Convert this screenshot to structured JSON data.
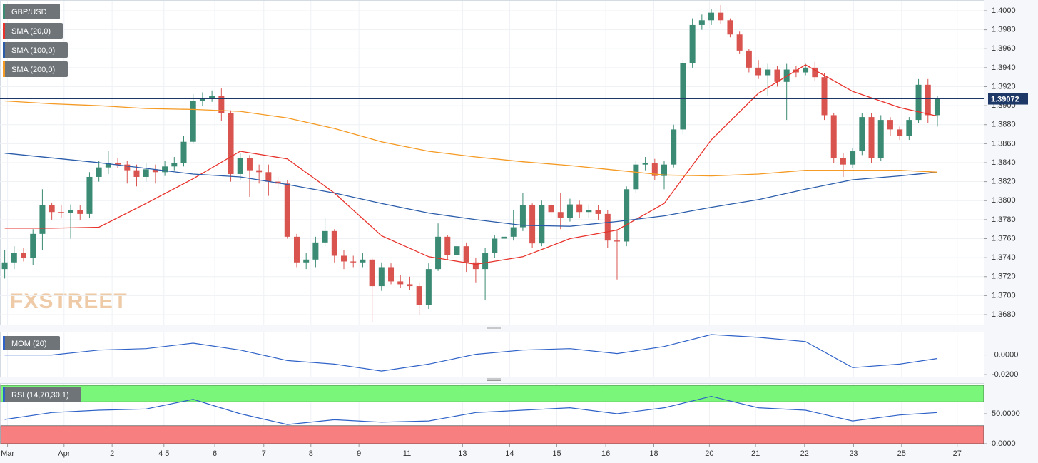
{
  "chart_data": [
    {
      "type": "candlestick",
      "title": "GBP/USD",
      "watermark": "FXSTREET",
      "up_color": "#3b8b74",
      "down_color": "#d9534f",
      "open": [
        1.3728,
        1.3735,
        1.3745,
        1.374,
        1.3765,
        1.3795,
        1.3788,
        1.3787,
        1.379,
        1.3786,
        1.3825,
        1.3835,
        1.384,
        1.3838,
        1.3832,
        1.3825,
        1.3833,
        1.383,
        1.3836,
        1.384,
        1.3862,
        1.3905,
        1.3908,
        1.391,
        1.3892,
        1.3828,
        1.3845,
        1.3832,
        1.383,
        1.382,
        1.3818,
        1.3762,
        1.3735,
        1.3738,
        1.3756,
        1.3768,
        1.3742,
        1.3736,
        1.3735,
        1.3738,
        1.371,
        1.373,
        1.3715,
        1.3712,
        1.371,
        1.369,
        1.3728,
        1.3762,
        1.3743,
        1.3752,
        1.3735,
        1.3728,
        1.3745,
        1.376,
        1.3762,
        1.3772,
        1.3795,
        1.3755,
        1.3795,
        1.3788,
        1.3782,
        1.3796,
        1.3788,
        1.379,
        1.3786,
        1.3758,
        1.3757,
        1.3812,
        1.3838,
        1.384,
        1.3826,
        1.3838,
        1.3875,
        1.3945,
        1.3985,
        1.399,
        1.3998,
        1.399,
        1.3975,
        1.3958,
        1.394,
        1.3932,
        1.3938,
        1.3925,
        1.3938,
        1.3935,
        1.394,
        1.393,
        1.389,
        1.3845,
        1.3838,
        1.3852,
        1.3888,
        1.3845,
        1.3885,
        1.3875,
        1.3868,
        1.3885,
        1.3922,
        1.389
      ],
      "high": [
        1.3748,
        1.3752,
        1.375,
        1.377,
        1.3812,
        1.3798,
        1.3795,
        1.3796,
        1.3795,
        1.383,
        1.3842,
        1.3852,
        1.3845,
        1.3842,
        1.3838,
        1.384,
        1.3838,
        1.3842,
        1.3846,
        1.3868,
        1.3912,
        1.3914,
        1.3916,
        1.3918,
        1.3895,
        1.385,
        1.3848,
        1.3838,
        1.3838,
        1.3825,
        1.3822,
        1.3765,
        1.3745,
        1.3762,
        1.3782,
        1.377,
        1.3748,
        1.3742,
        1.3745,
        1.374,
        1.3735,
        1.3734,
        1.3722,
        1.372,
        1.3714,
        1.3734,
        1.3776,
        1.3764,
        1.3758,
        1.3756,
        1.374,
        1.375,
        1.3764,
        1.3768,
        1.379,
        1.3808,
        1.3797,
        1.38,
        1.3798,
        1.3808,
        1.3802,
        1.38,
        1.3796,
        1.3795,
        1.379,
        1.377,
        1.3815,
        1.3842,
        1.3846,
        1.3844,
        1.3842,
        1.388,
        1.3948,
        1.3992,
        1.3996,
        1.4002,
        1.4006,
        1.3992,
        1.3978,
        1.396,
        1.3948,
        1.3944,
        1.3942,
        1.3944,
        1.3942,
        1.3944,
        1.3946,
        1.3934,
        1.3892,
        1.385,
        1.3855,
        1.3892,
        1.3892,
        1.389,
        1.3888,
        1.3878,
        1.3888,
        1.3928,
        1.3928,
        1.391
      ],
      "low": [
        1.3718,
        1.3728,
        1.3736,
        1.3732,
        1.3748,
        1.378,
        1.3782,
        1.376,
        1.378,
        1.3782,
        1.382,
        1.3828,
        1.3834,
        1.3818,
        1.3815,
        1.382,
        1.3818,
        1.3826,
        1.3832,
        1.3836,
        1.386,
        1.39,
        1.3904,
        1.3884,
        1.382,
        1.3822,
        1.3804,
        1.3818,
        1.3805,
        1.3812,
        1.376,
        1.373,
        1.3728,
        1.373,
        1.3752,
        1.3735,
        1.3728,
        1.373,
        1.373,
        1.3672,
        1.3705,
        1.3712,
        1.3708,
        1.3706,
        1.368,
        1.3686,
        1.3726,
        1.3738,
        1.3735,
        1.3725,
        1.3714,
        1.3695,
        1.374,
        1.3755,
        1.3758,
        1.3768,
        1.375,
        1.3752,
        1.3782,
        1.377,
        1.3778,
        1.3782,
        1.3782,
        1.378,
        1.375,
        1.3717,
        1.3752,
        1.3808,
        1.3832,
        1.3822,
        1.3812,
        1.3835,
        1.387,
        1.394,
        1.398,
        1.3985,
        1.3986,
        1.3972,
        1.3955,
        1.3935,
        1.3928,
        1.391,
        1.392,
        1.3885,
        1.393,
        1.3932,
        1.3926,
        1.3885,
        1.384,
        1.3825,
        1.3834,
        1.3848,
        1.384,
        1.3842,
        1.3868,
        1.3864,
        1.3864,
        1.3882,
        1.3882,
        1.3878
      ],
      "close": [
        1.3735,
        1.3745,
        1.374,
        1.3765,
        1.3795,
        1.3788,
        1.3787,
        1.379,
        1.3786,
        1.3825,
        1.3835,
        1.384,
        1.3838,
        1.3832,
        1.3825,
        1.3833,
        1.383,
        1.3836,
        1.384,
        1.3862,
        1.3905,
        1.3908,
        1.391,
        1.3892,
        1.3828,
        1.3845,
        1.3832,
        1.383,
        1.382,
        1.3818,
        1.3762,
        1.3735,
        1.3738,
        1.3756,
        1.3768,
        1.3742,
        1.3736,
        1.3735,
        1.3738,
        1.371,
        1.373,
        1.3715,
        1.3712,
        1.371,
        1.369,
        1.3728,
        1.3762,
        1.3743,
        1.3752,
        1.3735,
        1.3728,
        1.3745,
        1.376,
        1.3762,
        1.3772,
        1.3795,
        1.3755,
        1.3795,
        1.3788,
        1.3782,
        1.3796,
        1.3788,
        1.379,
        1.3786,
        1.3758,
        1.3757,
        1.3812,
        1.3838,
        1.384,
        1.3826,
        1.3838,
        1.3875,
        1.3945,
        1.3985,
        1.399,
        1.3998,
        1.399,
        1.3975,
        1.3958,
        1.394,
        1.3932,
        1.3938,
        1.3925,
        1.3938,
        1.3935,
        1.394,
        1.393,
        1.389,
        1.3845,
        1.3838,
        1.3852,
        1.3888,
        1.3845,
        1.3885,
        1.3875,
        1.3868,
        1.3885,
        1.3922,
        1.389,
        1.3907
      ],
      "overlays": [
        {
          "name": "SMA (20,0)",
          "color": "#e8322b",
          "x": [
            0,
            5,
            10,
            15,
            20,
            25,
            30,
            35,
            40,
            45,
            50,
            55,
            60,
            65,
            70,
            75,
            80,
            85,
            90,
            95,
            99
          ],
          "values": [
            1.3771,
            1.3771,
            1.3772,
            1.3797,
            1.3823,
            1.3852,
            1.3844,
            1.3808,
            1.3763,
            1.3741,
            1.3733,
            1.3741,
            1.376,
            1.3769,
            1.3797,
            1.3864,
            1.3913,
            1.3943,
            1.3915,
            1.3898,
            1.3889
          ]
        },
        {
          "name": "SMA (100,0)",
          "color": "#2a5caa",
          "x": [
            0,
            5,
            10,
            15,
            20,
            25,
            30,
            35,
            40,
            45,
            50,
            55,
            60,
            65,
            70,
            75,
            80,
            85,
            90,
            95,
            99
          ],
          "values": [
            1.385,
            1.3845,
            1.384,
            1.3834,
            1.3828,
            1.3825,
            1.3817,
            1.3808,
            1.3797,
            1.3787,
            1.378,
            1.3774,
            1.3773,
            1.3778,
            1.3784,
            1.3793,
            1.3801,
            1.3812,
            1.3822,
            1.3826,
            1.383
          ]
        },
        {
          "name": "SMA (200,0)",
          "color": "#f59a23",
          "x": [
            0,
            5,
            10,
            15,
            20,
            25,
            30,
            35,
            40,
            45,
            50,
            55,
            60,
            65,
            70,
            75,
            80,
            85,
            90,
            95,
            99
          ],
          "values": [
            1.3905,
            1.3902,
            1.39,
            1.3897,
            1.3896,
            1.3894,
            1.3887,
            1.3876,
            1.3862,
            1.3852,
            1.3846,
            1.3841,
            1.3837,
            1.3832,
            1.3827,
            1.3826,
            1.3828,
            1.3832,
            1.3832,
            1.3832,
            1.383
          ]
        }
      ],
      "last_price": {
        "value": 1.39072,
        "label": "1.39072"
      },
      "ylim": [
        1.36695,
        1.40105
      ],
      "yticks": [
        {
          "value": 1.368,
          "label": "1.3680"
        },
        {
          "value": 1.37,
          "label": "1.3700"
        },
        {
          "value": 1.372,
          "label": "1.3720"
        },
        {
          "value": 1.374,
          "label": "1.3740"
        },
        {
          "value": 1.376,
          "label": "1.3760"
        },
        {
          "value": 1.378,
          "label": "1.3780"
        },
        {
          "value": 1.38,
          "label": "1.3800"
        },
        {
          "value": 1.382,
          "label": "1.3820"
        },
        {
          "value": 1.384,
          "label": "1.3840"
        },
        {
          "value": 1.386,
          "label": "1.3860"
        },
        {
          "value": 1.388,
          "label": "1.3880"
        },
        {
          "value": 1.39,
          "label": "1.3900"
        },
        {
          "value": 1.392,
          "label": "1.3920"
        },
        {
          "value": 1.394,
          "label": "1.3940"
        },
        {
          "value": 1.396,
          "label": "1.3960"
        },
        {
          "value": 1.398,
          "label": "1.3980"
        },
        {
          "value": 1.4,
          "label": "1.4000"
        }
      ],
      "xlim": [
        -0.5,
        104
      ],
      "xticks": [
        {
          "value": 0.3,
          "label": "Mar"
        },
        {
          "value": 6.3,
          "label": "Apr"
        },
        {
          "value": 11.4,
          "label": "2"
        },
        {
          "value": 16.9,
          "label": "4 5"
        },
        {
          "value": 22.3,
          "label": "6"
        },
        {
          "value": 27.5,
          "label": "7"
        },
        {
          "value": 32.5,
          "label": "8"
        },
        {
          "value": 37.6,
          "label": "9"
        },
        {
          "value": 42.7,
          "label": "11"
        },
        {
          "value": 48.6,
          "label": "13"
        },
        {
          "value": 53.6,
          "label": "14"
        },
        {
          "value": 58.6,
          "label": "15"
        },
        {
          "value": 63.8,
          "label": "16"
        },
        {
          "value": 68.9,
          "label": "18"
        },
        {
          "value": 74.8,
          "label": "20"
        },
        {
          "value": 79.7,
          "label": "21"
        },
        {
          "value": 84.9,
          "label": "22"
        },
        {
          "value": 90.1,
          "label": "23"
        },
        {
          "value": 95.2,
          "label": "25"
        },
        {
          "value": 101.1,
          "label": "27"
        }
      ],
      "grid": true
    },
    {
      "type": "line",
      "title": "MOM (20)",
      "color": "#2f62c8",
      "title_color": "#2f62c8",
      "x": [
        0,
        5,
        10,
        15,
        20,
        25,
        30,
        35,
        40,
        45,
        50,
        55,
        60,
        65,
        70,
        75,
        80,
        85,
        90,
        95,
        99
      ],
      "values": [
        0,
        0,
        0.005,
        0.0064,
        0.012,
        0.005,
        -0.0057,
        -0.0093,
        -0.0164,
        -0.0093,
        0.0007,
        0.005,
        0.0064,
        0.0014,
        0.0086,
        0.0207,
        0.0179,
        0.0136,
        -0.0129,
        -0.0093,
        -0.0036
      ],
      "ylim": [
        -0.0221,
        0.0229
      ],
      "yticks": [
        {
          "value": 0,
          "label": "-0.0000"
        },
        {
          "value": -0.02,
          "label": "-0.0200"
        }
      ]
    },
    {
      "type": "line",
      "title": "RSI (14,70,30,1)",
      "color": "#2f62c8",
      "upper": 70,
      "lower": 30,
      "upper_color": "#7af77a",
      "lower_color": "#f87f7f",
      "x": [
        0,
        5,
        10,
        15,
        20,
        25,
        30,
        35,
        40,
        45,
        50,
        55,
        60,
        65,
        70,
        75,
        80,
        85,
        90,
        95,
        99
      ],
      "values": [
        40.5,
        52,
        56,
        58,
        74,
        50,
        32,
        40,
        36,
        38,
        52,
        56,
        60,
        50,
        60,
        79,
        60,
        56,
        38,
        48,
        52
      ],
      "ylim": [
        0,
        100
      ],
      "yticks": [
        {
          "value": 0,
          "label": "0.0000"
        },
        {
          "value": 50,
          "label": "50.0000"
        }
      ]
    }
  ]
}
